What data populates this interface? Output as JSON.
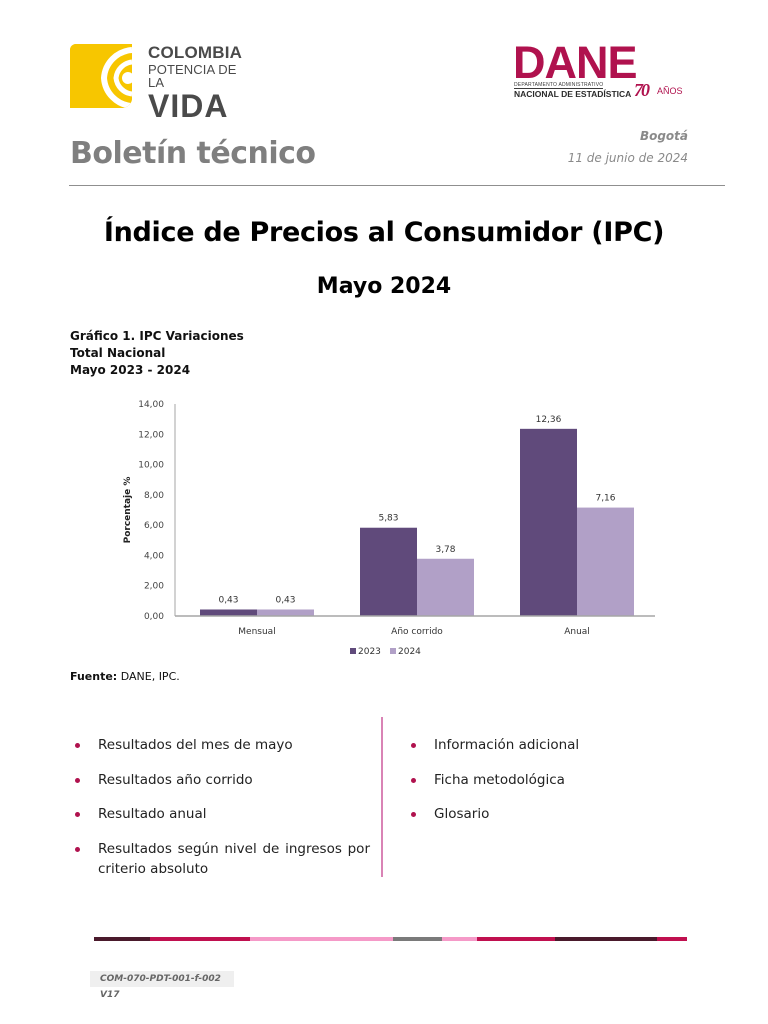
{
  "header": {
    "colombia_logo": {
      "line1": "COLOMBIA",
      "line2": "POTENCIA DE LA",
      "line3": "VIDA",
      "color": "#f7c600"
    },
    "dane_logo": {
      "wordmark": "DANE",
      "subtitle_small": "DEPARTAMENTO ADMINISTRATIVO",
      "subtitle_main": "NACIONAL DE ESTADÍSTICA",
      "anniversary_number": "70",
      "anniversary_label": "AÑOS",
      "color": "#b0124e"
    },
    "doc_type": "Boletín técnico",
    "city": "Bogotá",
    "date": "11 de junio de 2024"
  },
  "title": {
    "main": "Índice de Precios al Consumidor (IPC)",
    "period": "Mayo 2024"
  },
  "chart_caption": {
    "line1": "Gráfico 1. IPC Variaciones",
    "line2": "Total Nacional",
    "line3": "Mayo 2023 - 2024"
  },
  "chart_data": {
    "type": "bar",
    "title": "Gráfico 1. IPC Variaciones — Total Nacional — Mayo 2023 - 2024",
    "categories": [
      "Mensual",
      "Año corrido",
      "Anual"
    ],
    "series": [
      {
        "name": "2023",
        "values": [
          0.43,
          5.83,
          12.36
        ],
        "color": "#604a7b"
      },
      {
        "name": "2024",
        "values": [
          0.43,
          3.78,
          7.16
        ],
        "color": "#b1a0c7"
      }
    ],
    "data_labels": [
      [
        "0,43",
        "5,83",
        "12,36"
      ],
      [
        "0,43",
        "3,78",
        "7,16"
      ]
    ],
    "xlabel": "",
    "ylabel": "Porcentaje %",
    "ylim": [
      0,
      14
    ],
    "yticks": [
      "0,00",
      "2,00",
      "4,00",
      "6,00",
      "8,00",
      "10,00",
      "12,00",
      "14,00"
    ],
    "grid": false,
    "legend_position": "bottom"
  },
  "source": {
    "label": "Fuente:",
    "value": " DANE, IPC."
  },
  "contents": {
    "left": [
      "Resultados del mes de mayo",
      "Resultados año corrido",
      "Resultado anual",
      "Resultados según nivel de ingresos por criterio absoluto"
    ],
    "right": [
      "Información adicional",
      "Ficha metodológica",
      "Glosario"
    ],
    "bullet_color": "#b0124e"
  },
  "footer": {
    "stripe_colors": [
      "#4a1a2c",
      "#c0104f",
      "#f59ac8",
      "#7a7a7a",
      "#f59ac8",
      "#c0104f",
      "#4a1a2c",
      "#c0104f"
    ],
    "doc_code": "COM-070-PDT-001-f-002 V17"
  }
}
